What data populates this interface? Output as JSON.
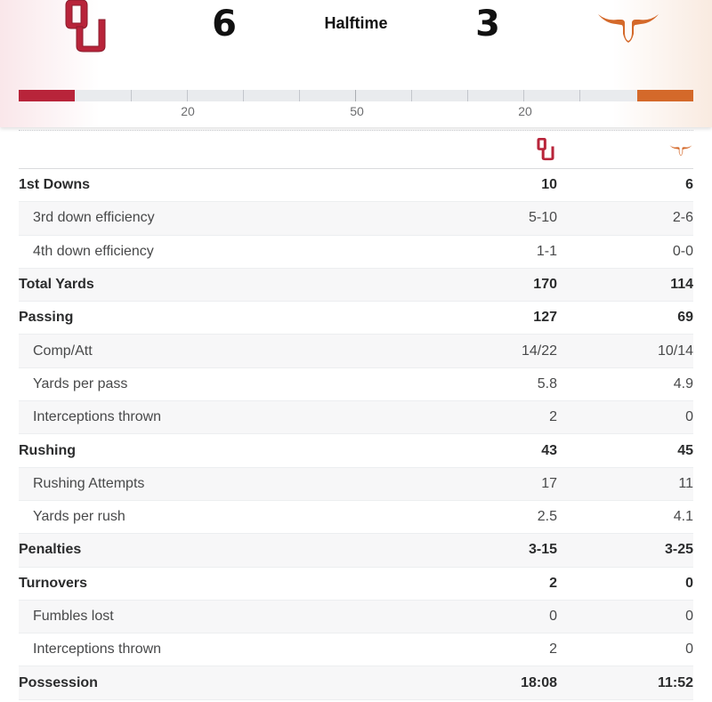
{
  "game": {
    "home": {
      "score": "6",
      "logo_icon": "ou-logo-icon",
      "color": "#b8243a"
    },
    "away": {
      "score": "3",
      "logo_icon": "longhorn-logo-icon",
      "color": "#d4692a"
    },
    "status": "Halftime"
  },
  "field": {
    "yard_labels": [
      "20",
      "50",
      "20"
    ]
  },
  "stats": {
    "rows": [
      {
        "label": "1st Downs",
        "home": "10",
        "away": "6",
        "type": "main"
      },
      {
        "label": "3rd down efficiency",
        "home": "5-10",
        "away": "2-6",
        "type": "sub"
      },
      {
        "label": "4th down efficiency",
        "home": "1-1",
        "away": "0-0",
        "type": "sub"
      },
      {
        "label": "Total Yards",
        "home": "170",
        "away": "114",
        "type": "main"
      },
      {
        "label": "Passing",
        "home": "127",
        "away": "69",
        "type": "main"
      },
      {
        "label": "Comp/Att",
        "home": "14/22",
        "away": "10/14",
        "type": "sub"
      },
      {
        "label": "Yards per pass",
        "home": "5.8",
        "away": "4.9",
        "type": "sub"
      },
      {
        "label": "Interceptions thrown",
        "home": "2",
        "away": "0",
        "type": "sub"
      },
      {
        "label": "Rushing",
        "home": "43",
        "away": "45",
        "type": "main"
      },
      {
        "label": "Rushing Attempts",
        "home": "17",
        "away": "11",
        "type": "sub"
      },
      {
        "label": "Yards per rush",
        "home": "2.5",
        "away": "4.1",
        "type": "sub"
      },
      {
        "label": "Penalties",
        "home": "3-15",
        "away": "3-25",
        "type": "main"
      },
      {
        "label": "Turnovers",
        "home": "2",
        "away": "0",
        "type": "main"
      },
      {
        "label": "Fumbles lost",
        "home": "0",
        "away": "0",
        "type": "sub"
      },
      {
        "label": "Interceptions thrown",
        "home": "2",
        "away": "0",
        "type": "sub"
      },
      {
        "label": "Possession",
        "home": "18:08",
        "away": "11:52",
        "type": "main"
      }
    ]
  }
}
